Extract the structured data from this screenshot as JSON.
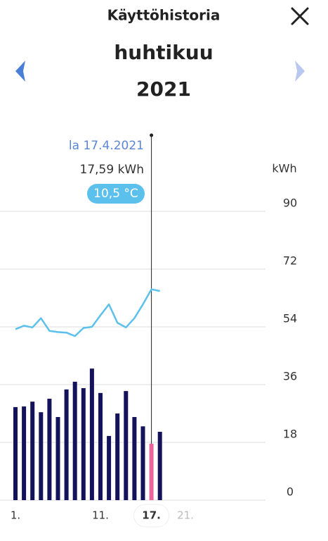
{
  "header": {
    "title": "Käyttöhistoria",
    "month": "huhtikuu",
    "year": "2021"
  },
  "selected": {
    "date": "la 17.4.2021",
    "energy": "17,59 kWh",
    "temperature": "10,5 °C"
  },
  "chart_data": {
    "type": "bar",
    "x": [
      1,
      2,
      3,
      4,
      5,
      6,
      7,
      8,
      9,
      10,
      11,
      12,
      13,
      14,
      15,
      16,
      17,
      18
    ],
    "xticks": [
      {
        "value": 1,
        "label": "1."
      },
      {
        "value": 11,
        "label": "11."
      },
      {
        "value": 17,
        "label": "17."
      },
      {
        "value": 21,
        "label": "21."
      }
    ],
    "selected_x": 17,
    "series": [
      {
        "name": "kWh",
        "color": "#14125a",
        "highlight_color": "#e8649a",
        "values": [
          29.0,
          29.2,
          30.7,
          27.4,
          31.6,
          25.9,
          34.5,
          36.9,
          34.9,
          41.0,
          33.4,
          20.0,
          27.0,
          34.0,
          25.9,
          23.0,
          17.59,
          21.3
        ]
      },
      {
        "name": "°C",
        "type": "line",
        "axis": "y2",
        "color": "#5bc0eb",
        "values": [
          3.6,
          4.2,
          3.9,
          5.5,
          3.3,
          3.1,
          3.0,
          2.4,
          3.8,
          4.0,
          6.0,
          7.9,
          4.7,
          3.9,
          5.5,
          7.9,
          10.5,
          10.2
        ]
      }
    ],
    "y_unit": "kWh",
    "ylim": [
      0,
      90
    ],
    "yticks": [
      0,
      18,
      36,
      54,
      72,
      90
    ],
    "grid": true,
    "y2lim": [
      -26,
      24
    ]
  }
}
